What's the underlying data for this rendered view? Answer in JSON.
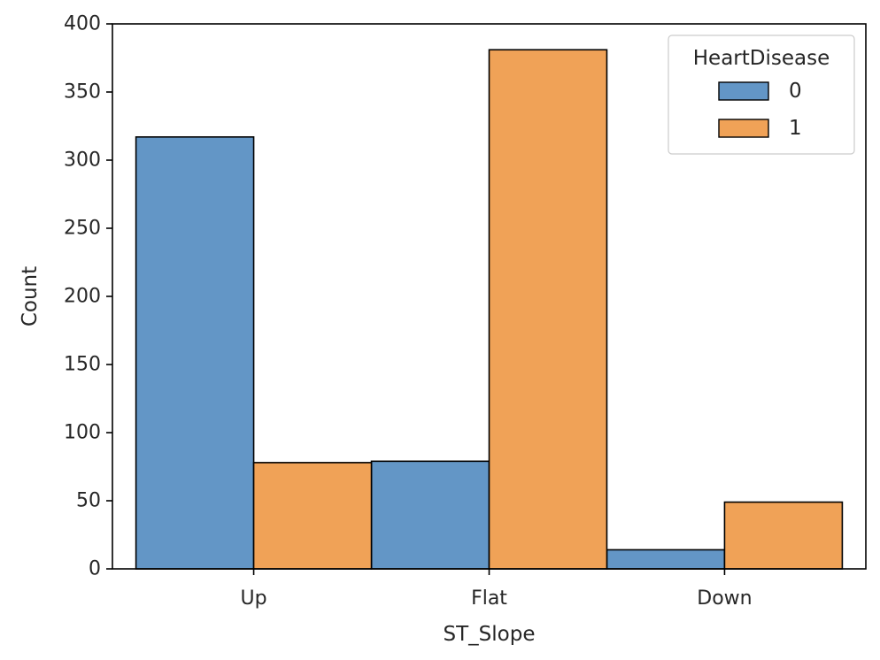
{
  "chart_data": {
    "type": "bar",
    "categories": [
      "Up",
      "Flat",
      "Down"
    ],
    "series": [
      {
        "name": "0",
        "values": [
          317,
          79,
          14
        ],
        "color": "#6396c6"
      },
      {
        "name": "1",
        "values": [
          78,
          381,
          49
        ],
        "color": "#f0a257"
      }
    ],
    "xlabel": "ST_Slope",
    "ylabel": "Count",
    "ylim": [
      0,
      400
    ],
    "yticks": [
      0,
      50,
      100,
      150,
      200,
      250,
      300,
      350,
      400
    ],
    "grid": false,
    "legend": {
      "title": "HeartDisease",
      "placement": "top-right"
    }
  }
}
